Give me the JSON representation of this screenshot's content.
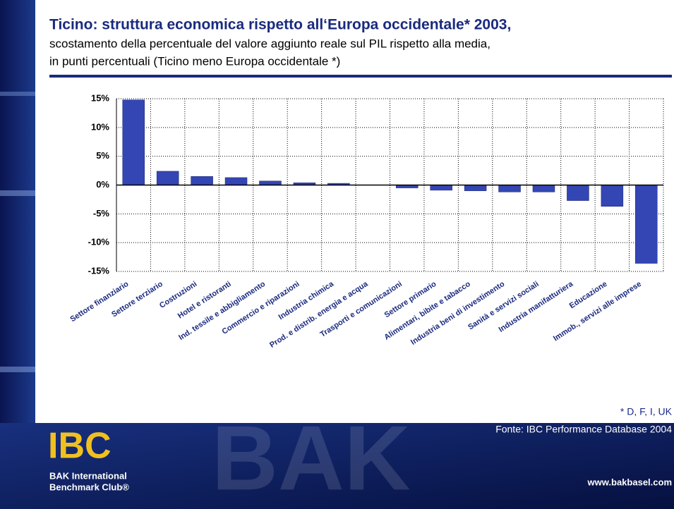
{
  "chart_data": {
    "type": "bar",
    "title": "Ticino: struttura economica rispetto all‘Europa occidentale* 2003,",
    "subtitle": [
      "scostamento della percentuale del valore aggiunto reale sul PIL rispetto alla media,",
      "in punti percentuali (Ticino meno Europa occidentale *)"
    ],
    "categories": [
      "Settore finanziario",
      "Settore terziario",
      "Costruzioni",
      "Hotel e ristoranti",
      "Ind. tessile e abbigliamento",
      "Commercio e riparazioni",
      "Industria chimica",
      "Prod. e distrib. energia e acqua",
      "Trasporti e comunicazioni",
      "Settore primario",
      "Alimentari, bibite e tabacco",
      "Industria beni di investimento",
      "Sanità e servizi sociali",
      "Industria manifatturiera",
      "Educazione",
      "Immob., servizi alle imprese"
    ],
    "values": [
      14.8,
      2.4,
      1.5,
      1.3,
      0.7,
      0.4,
      0.3,
      0.0,
      -0.5,
      -0.9,
      -1.0,
      -1.2,
      -1.2,
      -2.7,
      -3.7,
      -13.6
    ],
    "color": "#3446b4",
    "ylim": [
      -15,
      15
    ],
    "yticks": [
      {
        "value": 15,
        "label": "15%"
      },
      {
        "value": 10,
        "label": "10%"
      },
      {
        "value": 5,
        "label": "5%"
      },
      {
        "value": 0,
        "label": "0%"
      },
      {
        "value": -5,
        "label": "-5%"
      },
      {
        "value": -10,
        "label": "-10%"
      },
      {
        "value": -15,
        "label": "-15%"
      }
    ],
    "grid": true,
    "footnote": "* D, F, I, UK",
    "source": "Fonte: IBC Performance Database 2004"
  },
  "footer": {
    "logo": "IBC",
    "org_line1": "BAK International",
    "org_line2": "Benchmark Club®",
    "url": "www.bakbasel.com"
  }
}
